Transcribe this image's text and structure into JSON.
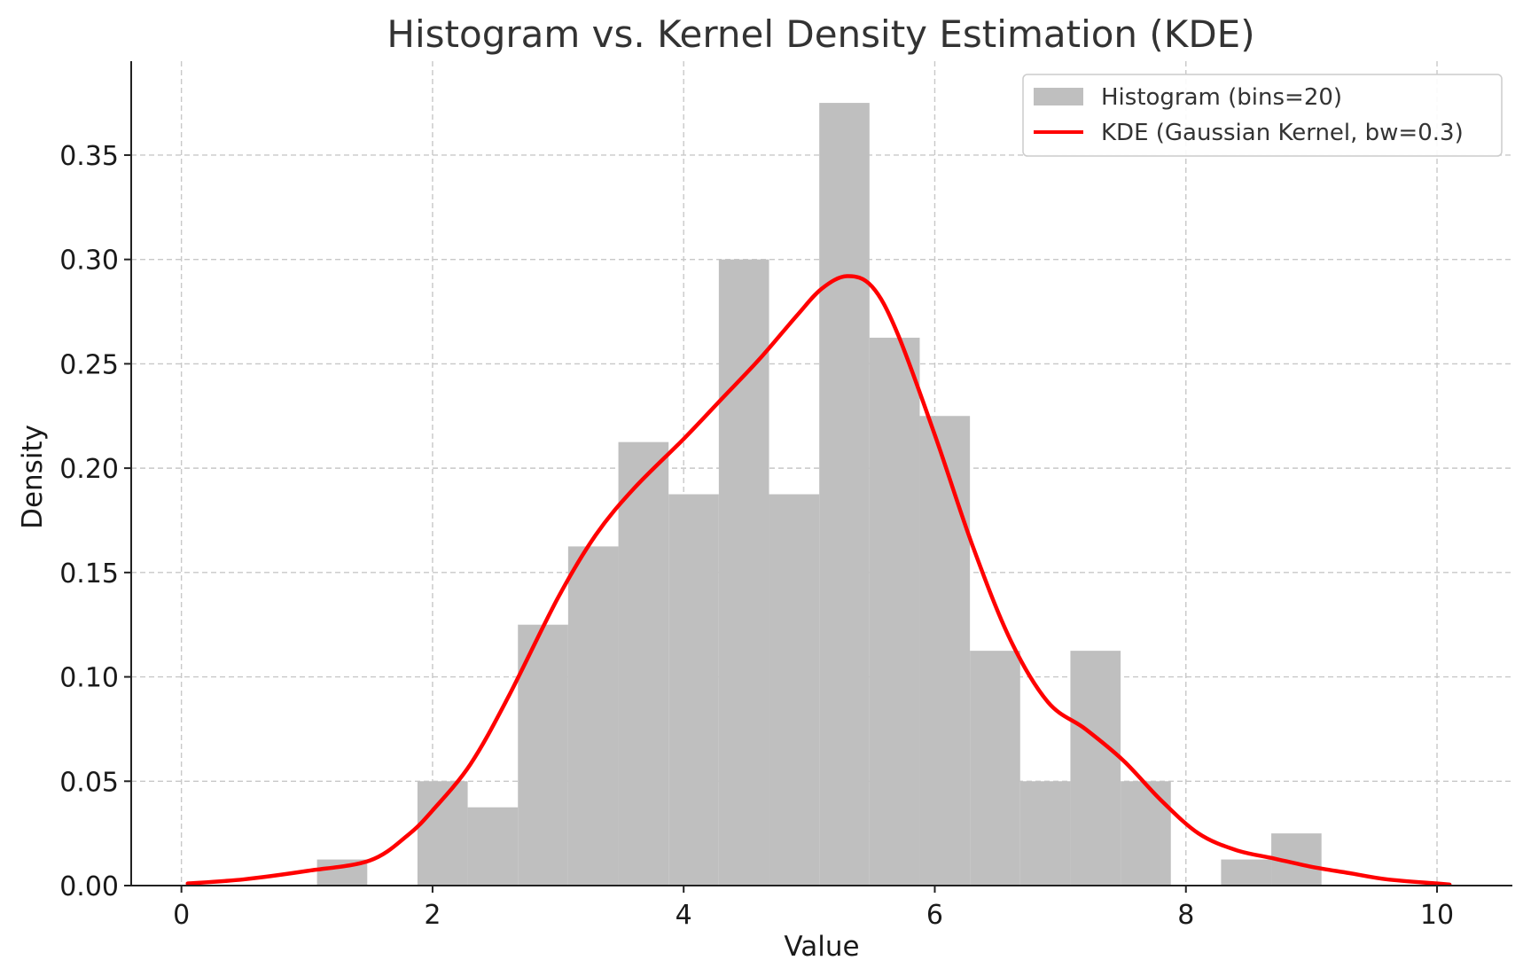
{
  "chart_data": {
    "type": "histogram+line",
    "title": "Histogram vs. Kernel Density Estimation (KDE)",
    "xlabel": "Value",
    "ylabel": "Density",
    "xlim": [
      -0.4,
      10.6
    ],
    "ylim": [
      0,
      0.395
    ],
    "xticks": [
      0,
      2,
      4,
      6,
      8,
      10
    ],
    "xtick_labels": [
      "0",
      "2",
      "4",
      "6",
      "8",
      "10"
    ],
    "yticks": [
      0.0,
      0.05,
      0.1,
      0.15,
      0.2,
      0.25,
      0.3,
      0.35
    ],
    "ytick_labels": [
      "0.00",
      "0.05",
      "0.10",
      "0.15",
      "0.20",
      "0.25",
      "0.30",
      "0.35"
    ],
    "grid": true,
    "legend_position": "top-right",
    "histogram": {
      "name": "Histogram (bins=20)",
      "color": "#bfbfbf",
      "bin_edges": [
        1.08,
        1.48,
        1.88,
        2.28,
        2.68,
        3.08,
        3.48,
        3.88,
        4.28,
        4.68,
        5.08,
        5.48,
        5.88,
        6.28,
        6.68,
        7.08,
        7.48,
        7.88,
        8.28,
        8.68,
        9.08
      ],
      "densities": [
        0.0125,
        0.0,
        0.05,
        0.0375,
        0.125,
        0.1625,
        0.2125,
        0.1875,
        0.3,
        0.1875,
        0.375,
        0.2625,
        0.225,
        0.1125,
        0.05,
        0.1125,
        0.05,
        0.0,
        0.0125,
        0.025
      ]
    },
    "kde": {
      "name": "KDE (Gaussian Kernel, bw=0.3)",
      "color": "#ff0000",
      "x": [
        0.05,
        0.5,
        1.0,
        1.5,
        1.8,
        2.0,
        2.3,
        2.6,
        3.0,
        3.3,
        3.6,
        4.0,
        4.3,
        4.6,
        4.9,
        5.1,
        5.3,
        5.5,
        5.7,
        6.0,
        6.3,
        6.6,
        6.9,
        7.2,
        7.5,
        7.8,
        8.1,
        8.4,
        8.7,
        9.0,
        9.3,
        9.6,
        10.0,
        10.1
      ],
      "y": [
        0.001,
        0.003,
        0.007,
        0.012,
        0.024,
        0.036,
        0.058,
        0.09,
        0.138,
        0.168,
        0.19,
        0.214,
        0.233,
        0.252,
        0.273,
        0.286,
        0.292,
        0.287,
        0.265,
        0.216,
        0.163,
        0.118,
        0.088,
        0.075,
        0.06,
        0.041,
        0.025,
        0.017,
        0.013,
        0.009,
        0.006,
        0.003,
        0.001,
        0.0005
      ]
    }
  }
}
